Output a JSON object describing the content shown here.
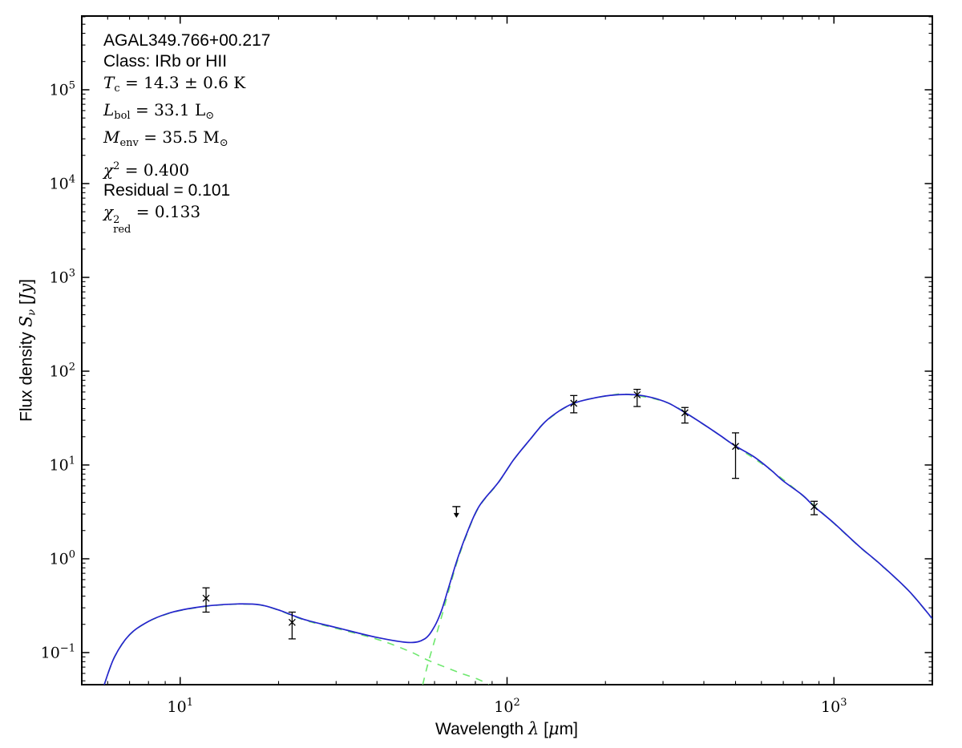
{
  "figure": {
    "background": "#ffffff",
    "frame_color": "#000000",
    "model_color": "#2424cc",
    "component_color": "#6ee86e",
    "marker_color": "#000000"
  },
  "annotation": {
    "source_name": "AGAL349.766+00.217",
    "class_label": "Class: IRb or HII",
    "t_c": {
      "symbol": "T",
      "subscript": "c",
      "value": " = 14.3 ± 0.6 K"
    },
    "l_bol": {
      "symbol": "L",
      "subscript": "bol",
      "value": " = 33.1 L",
      "value_subscript": "⊙"
    },
    "m_env": {
      "symbol": "M",
      "subscript": "env",
      "value": " = 35.5 M",
      "value_subscript": "⊙"
    },
    "chi_sq": {
      "symbol": "χ",
      "superscript": "2",
      "value": " = 0.400"
    },
    "residual": "Residual = 0.101",
    "chi_sq_red": {
      "symbol": "χ",
      "superscript": "2",
      "subscript": "red",
      "value": " = 0.133"
    }
  },
  "axes": {
    "xlabel": {
      "pre": "Wavelength ",
      "math": "λ",
      "open": " [",
      "mu": "μ",
      "close": "m]"
    },
    "ylabel": {
      "pre": "Flux density ",
      "math": "S",
      "sub": "ν",
      "open": " [",
      "unit": "Jy",
      "close": "]"
    }
  },
  "chart_data": {
    "type": "line",
    "title": "",
    "xlabel": "Wavelength λ [μm]",
    "ylabel": "Flux density S_ν [Jy]",
    "x_scale": "log",
    "y_scale": "log",
    "xlim": [
      5,
      2000
    ],
    "ylim": [
      0.0455,
      611000
    ],
    "x_major_ticks": [
      10,
      100,
      1000
    ],
    "y_major_ticks": [
      0.1,
      1,
      10,
      100,
      1000,
      10000,
      100000
    ],
    "grid": false,
    "legend": "none",
    "series": [
      {
        "name": "two-component model fit (total)",
        "style": "solid",
        "color": "#2424cc",
        "points": [
          [
            5.85,
            0.045
          ],
          [
            6.3,
            0.09
          ],
          [
            7.0,
            0.155
          ],
          [
            8.0,
            0.215
          ],
          [
            9.2,
            0.262
          ],
          [
            10.5,
            0.292
          ],
          [
            12.5,
            0.318
          ],
          [
            15,
            0.33
          ],
          [
            17.5,
            0.324
          ],
          [
            20,
            0.285
          ],
          [
            24,
            0.225
          ],
          [
            30,
            0.185
          ],
          [
            40,
            0.145
          ],
          [
            50,
            0.128
          ],
          [
            56,
            0.14
          ],
          [
            60,
            0.19
          ],
          [
            63,
            0.28
          ],
          [
            66,
            0.47
          ],
          [
            70,
            0.92
          ],
          [
            75,
            1.8
          ],
          [
            82,
            3.6
          ],
          [
            94,
            6.5
          ],
          [
            105,
            11.5
          ],
          [
            118,
            19
          ],
          [
            131,
            29
          ],
          [
            145,
            38
          ],
          [
            160,
            45.5
          ],
          [
            180,
            50.8
          ],
          [
            205,
            55
          ],
          [
            235,
            56.5
          ],
          [
            270,
            53.5
          ],
          [
            310,
            46
          ],
          [
            351,
            36
          ],
          [
            400,
            27
          ],
          [
            450,
            20.5
          ],
          [
            500,
            15.9
          ],
          [
            568,
            12.3
          ],
          [
            640,
            8.9
          ],
          [
            700,
            6.75
          ],
          [
            800,
            4.8
          ],
          [
            871,
            3.6
          ],
          [
            1000,
            2.4
          ],
          [
            1200,
            1.34
          ],
          [
            1400,
            0.85
          ],
          [
            1700,
            0.45
          ],
          [
            2000,
            0.23
          ]
        ]
      },
      {
        "name": "warm component",
        "style": "dashed",
        "color": "#6ee86e",
        "points": [
          [
            5.85,
            0.0449
          ],
          [
            6.3,
            0.0895
          ],
          [
            7.0,
            0.154
          ],
          [
            8.0,
            0.214
          ],
          [
            9.2,
            0.26
          ],
          [
            10.5,
            0.29
          ],
          [
            12.5,
            0.316
          ],
          [
            15,
            0.328
          ],
          [
            17.5,
            0.322
          ],
          [
            20,
            0.283
          ],
          [
            24,
            0.222
          ],
          [
            30,
            0.181
          ],
          [
            40,
            0.139
          ],
          [
            50,
            0.104
          ],
          [
            57,
            0.0835
          ],
          [
            65,
            0.0695
          ],
          [
            73,
            0.0595
          ],
          [
            81,
            0.0525
          ],
          [
            88,
            0.0455
          ]
        ]
      },
      {
        "name": "cold component",
        "style": "dashed",
        "color": "#6ee86e",
        "points": [
          [
            55.2,
            0.0455
          ],
          [
            57.5,
            0.08
          ],
          [
            60,
            0.133
          ],
          [
            63,
            0.239
          ],
          [
            66,
            0.43
          ],
          [
            70,
            0.875
          ],
          [
            75,
            1.75
          ],
          [
            82,
            3.55
          ],
          [
            94,
            6.45
          ],
          [
            105,
            11.45
          ],
          [
            118,
            18.9
          ],
          [
            131,
            28.9
          ],
          [
            160,
            45.4
          ],
          [
            205,
            54.9
          ],
          [
            235,
            56.4
          ],
          [
            310,
            45.9
          ],
          [
            400,
            26.9
          ],
          [
            500,
            15.85
          ],
          [
            640,
            8.85
          ],
          [
            800,
            4.77
          ],
          [
            1000,
            2.38
          ],
          [
            1200,
            1.33
          ],
          [
            1400,
            0.845
          ],
          [
            1700,
            0.448
          ],
          [
            2000,
            0.228
          ]
        ]
      }
    ],
    "data_points": [
      {
        "lambda": 12,
        "flux": 0.38,
        "flux_lo": 0.27,
        "flux_hi": 0.49
      },
      {
        "lambda": 22,
        "flux": 0.21,
        "flux_lo": 0.14,
        "flux_hi": 0.27
      },
      {
        "lambda": 160,
        "flux": 45.5,
        "flux_lo": 36.0,
        "flux_hi": 55.0
      },
      {
        "lambda": 250,
        "flux": 56.0,
        "flux_lo": 42.0,
        "flux_hi": 64.0
      },
      {
        "lambda": 350,
        "flux": 36.0,
        "flux_lo": 28.0,
        "flux_hi": 41.0
      },
      {
        "lambda": 500,
        "flux": 15.8,
        "flux_lo": 7.2,
        "flux_hi": 22.0
      },
      {
        "lambda": 870,
        "flux": 3.6,
        "flux_lo": 2.95,
        "flux_hi": 4.1
      }
    ],
    "upper_limits": [
      {
        "lambda": 70,
        "flux": 3.6,
        "arrow_to": 2.8
      }
    ]
  }
}
